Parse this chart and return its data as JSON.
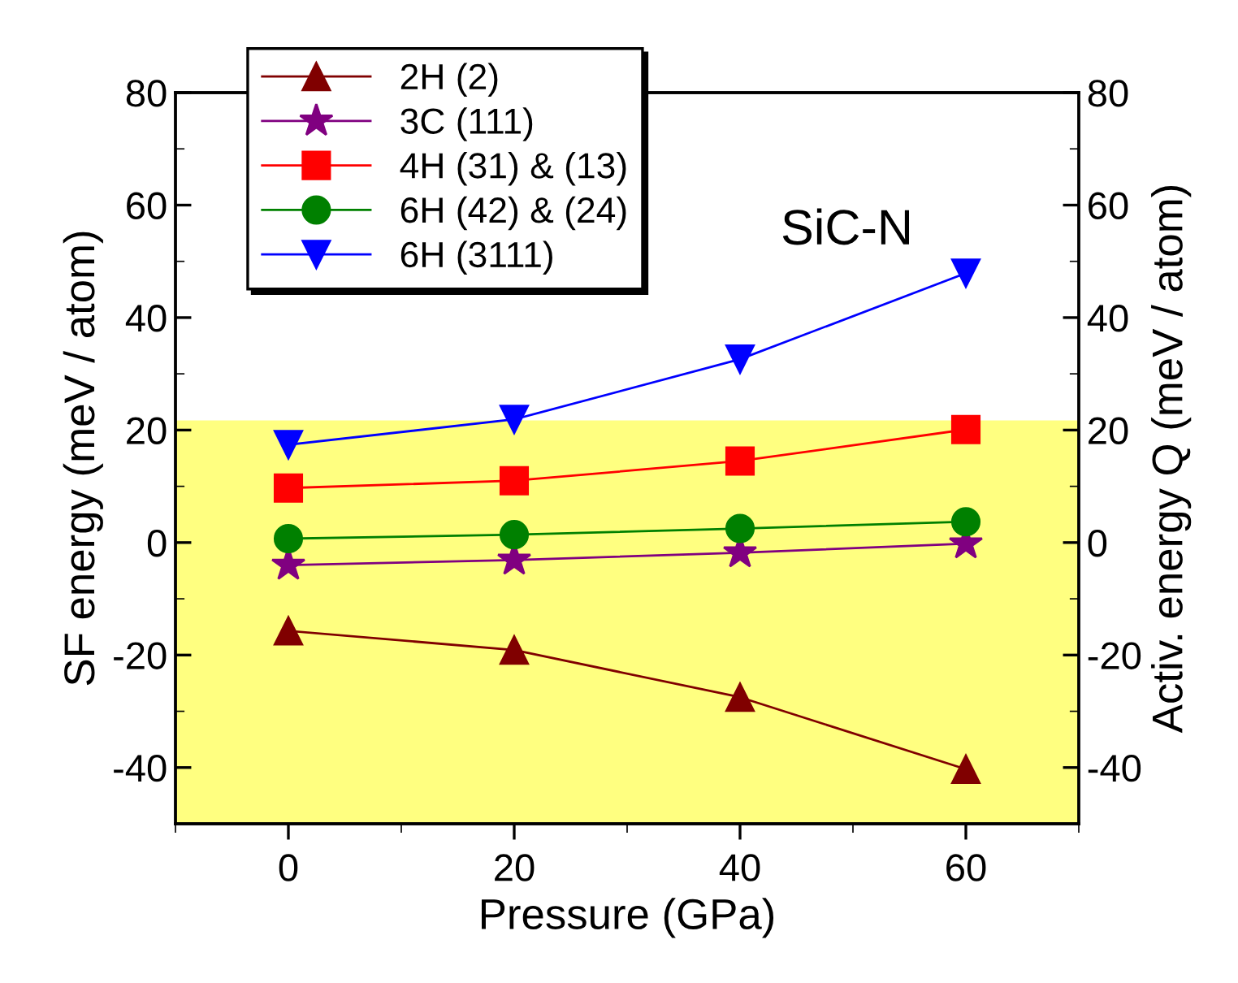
{
  "chart_data": {
    "type": "line",
    "xlabel": "Pressure (GPa)",
    "ylabel": "SF energy (meV / atom)",
    "y2label": "Activ. energy Q (meV / atom)",
    "annotations": [
      "SiC-N"
    ],
    "x": [
      0,
      20,
      40,
      60
    ],
    "series": [
      {
        "name": "2H (2)",
        "color": "#800000",
        "marker": "triangle",
        "values": [
          -15.7,
          -19.1,
          -27.5,
          -40.3
        ]
      },
      {
        "name": "3C (111)",
        "color": "#800080",
        "marker": "star",
        "values": [
          -4,
          -3.1,
          -1.8,
          -0.2
        ]
      },
      {
        "name": "4H (31) & (13)",
        "color": "#ff0000",
        "marker": "square",
        "values": [
          9.7,
          11,
          14.5,
          20.1
        ]
      },
      {
        "name": "6H (42) & (24)",
        "color": "#008000",
        "marker": "circle",
        "values": [
          0.7,
          1.4,
          2.5,
          3.7
        ]
      },
      {
        "name": "6H (3111)",
        "color": "#0000ff",
        "marker": "triangle_down",
        "values": [
          17.4,
          21.9,
          32.6,
          47.9
        ]
      }
    ],
    "bands": [
      {
        "axis": "y",
        "from": -50,
        "to": 21.7,
        "color": "#ffff80"
      }
    ],
    "xlim": [
      -10,
      70
    ],
    "xticks": [
      0,
      20,
      40,
      60
    ],
    "ylim": [
      -50,
      80
    ],
    "yticks": [
      -40,
      -20,
      0,
      20,
      40,
      60,
      80
    ],
    "y2lim": [
      -50,
      80
    ],
    "y2ticks": [
      -40,
      -20,
      0,
      20,
      40,
      60,
      80
    ],
    "grid": false,
    "legend": "top left",
    "line_style": "solid"
  }
}
